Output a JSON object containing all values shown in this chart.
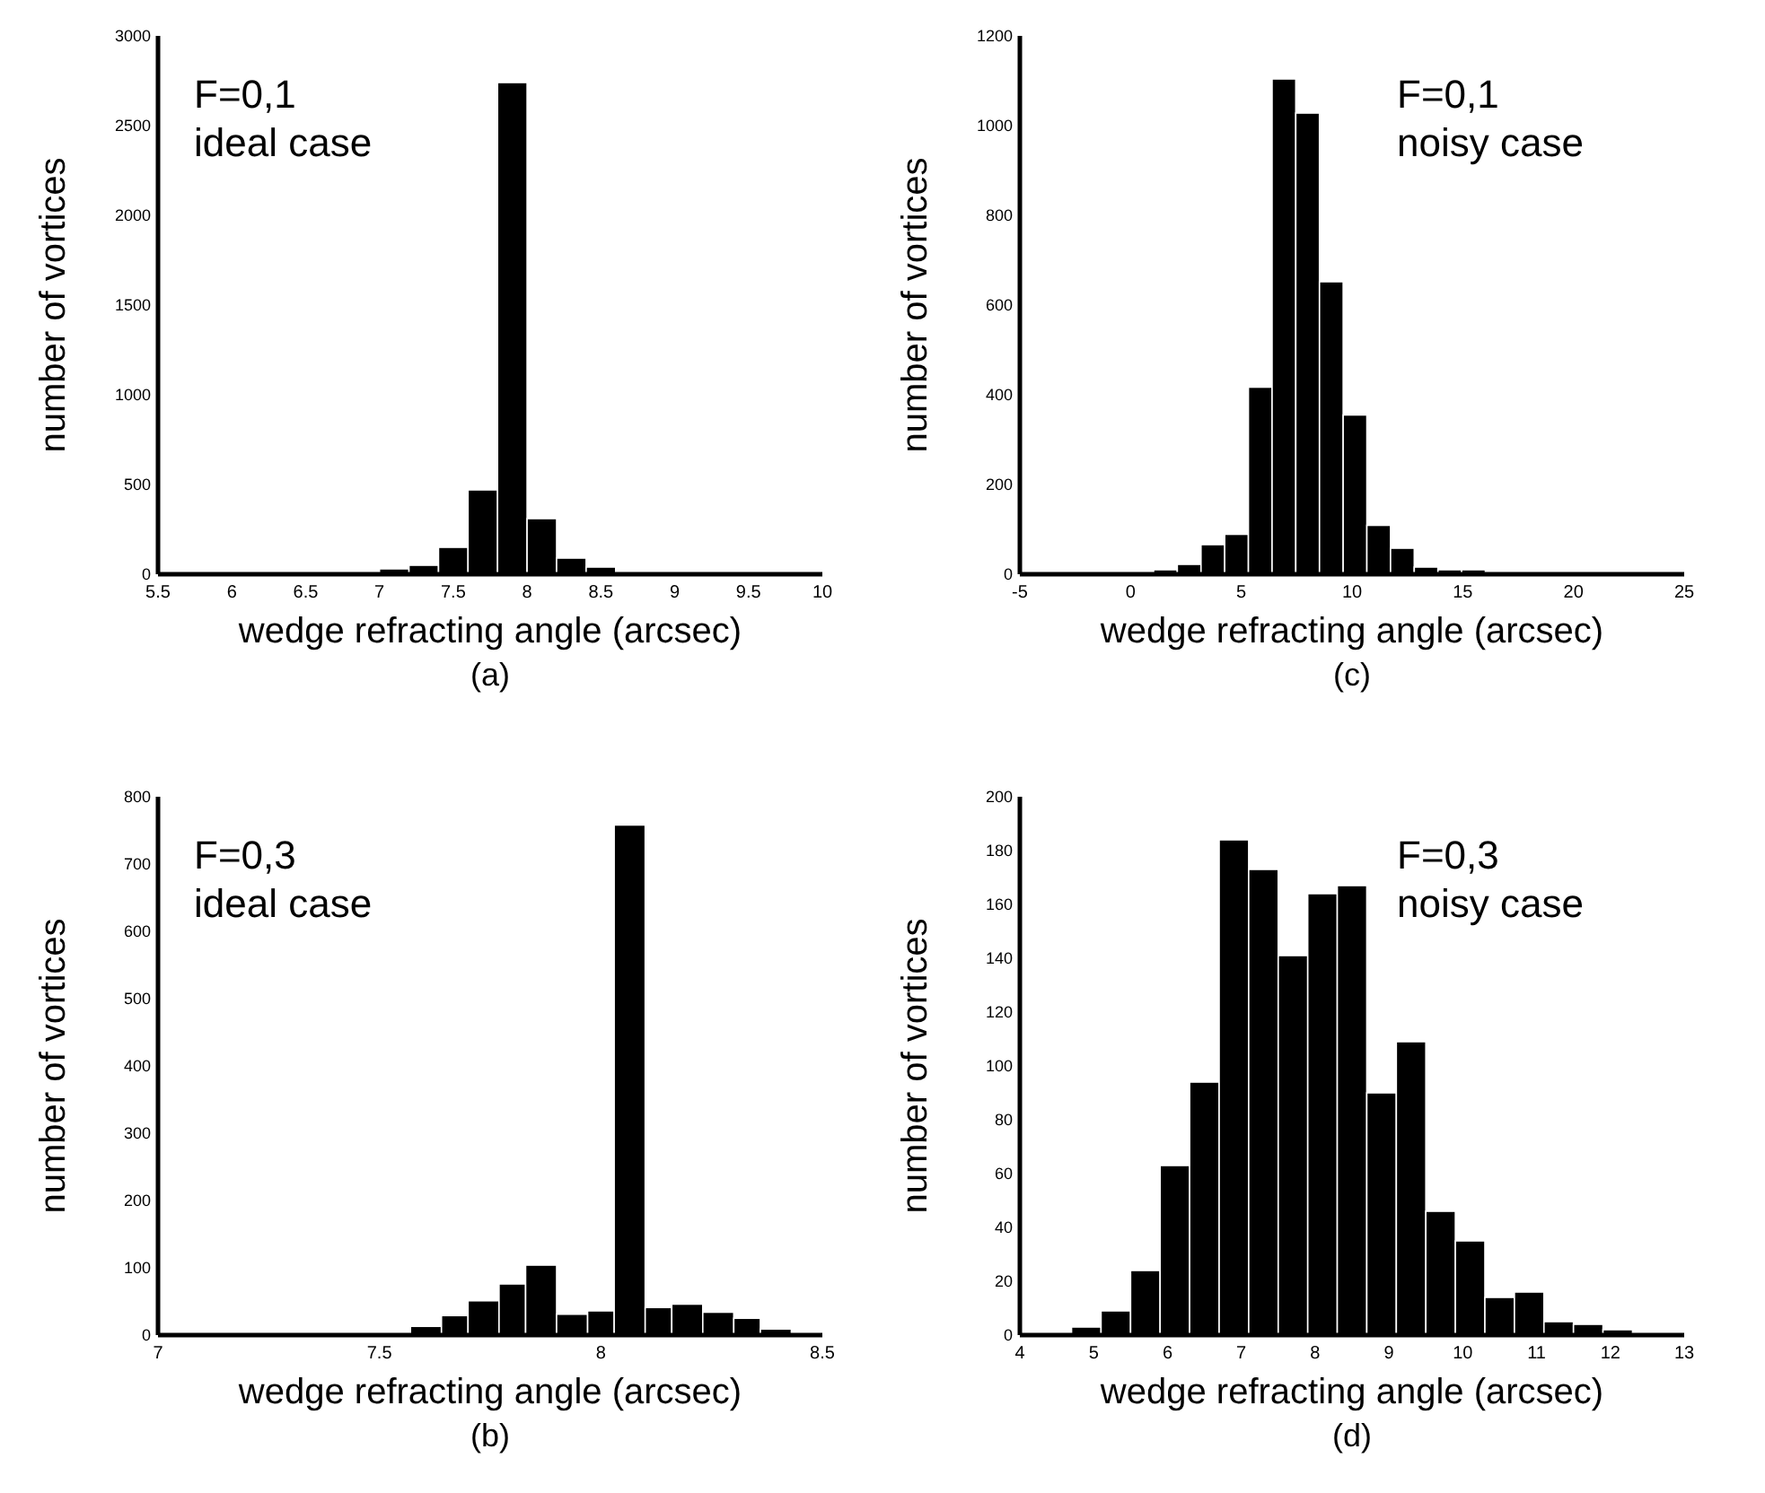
{
  "chart_data": [
    {
      "type": "histogram",
      "xlabel": "wedge refracting angle (arcsec)",
      "ylabel": "number of vortices",
      "annotations": [
        "F=0,1",
        "ideal case",
        "(a)"
      ],
      "color": "#000000",
      "bins": [
        7.0,
        7.2,
        7.4,
        7.6,
        7.8,
        8.0,
        8.2,
        8.4,
        8.6
      ],
      "values": [
        30,
        50,
        150,
        470,
        2740,
        310,
        90,
        40
      ],
      "xlim": [
        5.5,
        10
      ],
      "xticks": [
        5.5,
        6,
        6.5,
        7,
        7.5,
        8,
        8.5,
        9,
        9.5,
        10
      ],
      "ylim": [
        0,
        3000
      ],
      "yticks": [
        0,
        500,
        1000,
        1500,
        2000,
        2500,
        3000
      ]
    },
    {
      "type": "histogram",
      "xlabel": "wedge refracting angle (arcsec)",
      "ylabel": "number of vortices",
      "annotations": [
        "F=0,1",
        "noisy case",
        "(c)"
      ],
      "color": "#000000",
      "bins": [
        -0.03,
        1.04,
        2.11,
        3.18,
        4.25,
        5.32,
        6.39,
        7.46,
        8.53,
        9.6,
        10.67,
        11.74,
        12.81,
        13.88,
        14.95,
        16.02
      ],
      "values": [
        3,
        10,
        22,
        66,
        89,
        417,
        1104,
        1028,
        652,
        355,
        109,
        58,
        16,
        10,
        10
      ],
      "xlim": [
        -5,
        25
      ],
      "xticks": [
        -5,
        0,
        5,
        10,
        15,
        20,
        25
      ],
      "ylim": [
        0,
        1200
      ],
      "yticks": [
        0,
        200,
        400,
        600,
        800,
        1000,
        1200
      ]
    },
    {
      "type": "histogram",
      "xlabel": "wedge refracting angle (arcsec)",
      "ylabel": "number of vortices",
      "annotations": [
        "F=0,3",
        "ideal case",
        "(b)"
      ],
      "color": "#000000",
      "bins": [
        7.57,
        7.64,
        7.7,
        7.77,
        7.83,
        7.9,
        7.97,
        8.03,
        8.1,
        8.16,
        8.23,
        8.3,
        8.36,
        8.43
      ],
      "values": [
        13,
        29,
        51,
        76,
        104,
        31,
        36,
        758,
        41,
        46,
        34,
        25,
        9
      ],
      "xlim": [
        7,
        8.5
      ],
      "xticks": [
        7,
        7.5,
        8,
        8.5
      ],
      "ylim": [
        0,
        800
      ],
      "yticks": [
        0,
        100,
        200,
        300,
        400,
        500,
        600,
        700,
        800
      ]
    },
    {
      "type": "histogram",
      "xlabel": "wedge refracting angle (arcsec)",
      "ylabel": "number of vortices",
      "annotations": [
        "F=0,3",
        "noisy case",
        "(d)"
      ],
      "color": "#000000",
      "bins": [
        4.7,
        5.1,
        5.5,
        5.9,
        6.3,
        6.7,
        7.1,
        7.5,
        7.9,
        8.3,
        8.7,
        9.1,
        9.5,
        9.9,
        10.3,
        10.7,
        11.1,
        11.5,
        11.9,
        12.3
      ],
      "values": [
        3,
        9,
        24,
        63,
        94,
        184,
        173,
        141,
        164,
        167,
        90,
        109,
        46,
        35,
        14,
        16,
        5,
        4,
        2
      ],
      "xlim": [
        4,
        13
      ],
      "xticks": [
        4,
        5,
        6,
        7,
        8,
        9,
        10,
        11,
        12,
        13
      ],
      "ylim": [
        0,
        200
      ],
      "yticks": [
        0,
        20,
        40,
        60,
        80,
        100,
        120,
        140,
        160,
        180,
        200
      ]
    }
  ]
}
